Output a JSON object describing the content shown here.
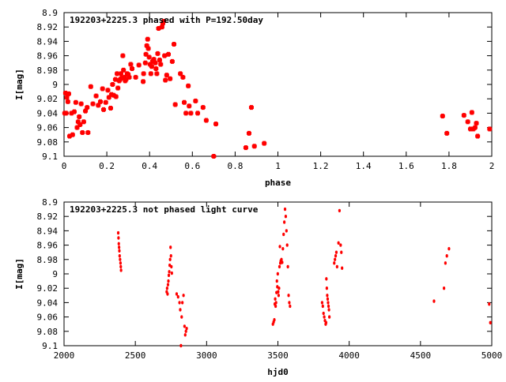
{
  "chart_data": [
    {
      "type": "scatter",
      "title": "192203+2225.3 phased with P=192.50day",
      "xlabel": "phase",
      "ylabel": "I[mag]",
      "xlim": [
        0,
        2
      ],
      "ylim": [
        9.1,
        8.9
      ],
      "y_inverted": true,
      "x_ticks": [
        "0",
        "0.2",
        "0.4",
        "0.6",
        "0.8",
        "1",
        "1.2",
        "1.4",
        "1.6",
        "1.8",
        "2"
      ],
      "y_ticks": [
        "8.9",
        "8.92",
        "8.94",
        "8.96",
        "8.98",
        "9",
        "9.02",
        "9.04",
        "9.06",
        "9.08",
        "9.1"
      ],
      "grid": false,
      "marker_color": "#ff0000",
      "series": [
        {
          "points": [
            [
              0.003,
              9.04
            ],
            [
              0.007,
              9.012
            ],
            [
              0.01,
              9.04
            ],
            [
              0.013,
              9.018
            ],
            [
              0.018,
              9.024
            ],
            [
              0.022,
              9.013
            ],
            [
              0.026,
              9.072
            ],
            [
              0.035,
              9.04
            ],
            [
              0.04,
              9.07
            ],
            [
              0.048,
              9.038
            ],
            [
              0.055,
              9.025
            ],
            [
              0.061,
              9.06
            ],
            [
              0.066,
              9.052
            ],
            [
              0.071,
              9.045
            ],
            [
              0.075,
              9.056
            ],
            [
              0.08,
              9.027
            ],
            [
              0.086,
              9.067
            ],
            [
              0.092,
              9.052
            ],
            [
              0.1,
              9.037
            ],
            [
              0.108,
              9.032
            ],
            [
              0.112,
              9.067
            ],
            [
              0.125,
              9.003
            ],
            [
              0.135,
              9.027
            ],
            [
              0.15,
              9.016
            ],
            [
              0.16,
              9.029
            ],
            [
              0.17,
              9.024
            ],
            [
              0.18,
              9.006
            ],
            [
              0.185,
              9.035
            ],
            [
              0.195,
              9.025
            ],
            [
              0.205,
              9.008
            ],
            [
              0.21,
              9.018
            ],
            [
              0.218,
              9.033
            ],
            [
              0.222,
              9.014
            ],
            [
              0.227,
              9.0
            ],
            [
              0.232,
              9.015
            ],
            [
              0.24,
              8.993
            ],
            [
              0.243,
              9.017
            ],
            [
              0.248,
              8.985
            ],
            [
              0.252,
              9.005
            ],
            [
              0.258,
              8.995
            ],
            [
              0.262,
              8.993
            ],
            [
              0.266,
              8.985
            ],
            [
              0.27,
              8.991
            ],
            [
              0.275,
              8.96
            ],
            [
              0.278,
              8.98
            ],
            [
              0.282,
              8.99
            ],
            [
              0.286,
              8.995
            ],
            [
              0.29,
              8.993
            ],
            [
              0.295,
              8.985
            ],
            [
              0.3,
              8.986
            ],
            [
              0.305,
              8.99
            ],
            [
              0.312,
              8.972
            ],
            [
              0.318,
              8.978
            ],
            [
              0.335,
              8.99
            ],
            [
              0.35,
              8.973
            ],
            [
              0.37,
              8.996
            ],
            [
              0.372,
              8.985
            ],
            [
              0.38,
              8.97
            ],
            [
              0.383,
              8.958
            ],
            [
              0.387,
              8.946
            ],
            [
              0.391,
              8.937
            ],
            [
              0.394,
              8.95
            ],
            [
              0.398,
              8.962
            ],
            [
              0.402,
              8.972
            ],
            [
              0.406,
              8.985
            ],
            [
              0.41,
              8.975
            ],
            [
              0.414,
              8.968
            ],
            [
              0.42,
              8.965
            ],
            [
              0.427,
              8.97
            ],
            [
              0.43,
              8.978
            ],
            [
              0.434,
              8.985
            ],
            [
              0.438,
              8.957
            ],
            [
              0.442,
              8.922
            ],
            [
              0.447,
              8.966
            ],
            [
              0.452,
              8.972
            ],
            [
              0.458,
              8.92
            ],
            [
              0.462,
              8.915
            ],
            [
              0.466,
              8.912
            ],
            [
              0.47,
              8.96
            ],
            [
              0.474,
              8.994
            ],
            [
              0.48,
              8.987
            ],
            [
              0.488,
              8.958
            ],
            [
              0.496,
              8.992
            ],
            [
              0.506,
              8.968
            ],
            [
              0.514,
              8.944
            ],
            [
              0.52,
              9.028
            ],
            [
              0.544,
              8.985
            ],
            [
              0.556,
              8.99
            ],
            [
              0.562,
              9.025
            ],
            [
              0.57,
              9.04
            ],
            [
              0.581,
              9.002
            ],
            [
              0.585,
              9.03
            ],
            [
              0.593,
              9.04
            ],
            [
              0.615,
              9.023
            ],
            [
              0.625,
              9.04
            ],
            [
              0.65,
              9.032
            ],
            [
              0.665,
              9.05
            ],
            [
              0.7,
              9.1
            ],
            [
              0.71,
              9.055
            ],
            [
              0.85,
              9.088
            ],
            [
              0.865,
              9.068
            ],
            [
              0.876,
              9.032
            ],
            [
              0.89,
              9.086
            ],
            [
              0.936,
              9.082
            ],
            [
              1.77,
              9.044
            ],
            [
              1.79,
              9.068
            ],
            [
              1.87,
              9.043
            ],
            [
              1.888,
              9.052
            ],
            [
              1.9,
              9.062
            ],
            [
              1.907,
              9.039
            ],
            [
              1.914,
              9.062
            ],
            [
              1.922,
              9.06
            ],
            [
              1.928,
              9.054
            ],
            [
              1.934,
              9.072
            ],
            [
              1.99,
              9.062
            ]
          ]
        }
      ]
    },
    {
      "type": "scatter",
      "title": "192203+2225.3 not phased light curve",
      "xlabel": "hjd0",
      "ylabel": "I[mag]",
      "xlim": [
        2000,
        5000
      ],
      "ylim": [
        9.1,
        8.9
      ],
      "y_inverted": true,
      "x_ticks": [
        "2000",
        "2500",
        "3000",
        "3500",
        "4000",
        "4500",
        "5000"
      ],
      "y_ticks": [
        "8.9",
        "8.92",
        "8.94",
        "8.96",
        "8.98",
        "9",
        "9.02",
        "9.04",
        "9.06",
        "9.08",
        "9.1"
      ],
      "grid": false,
      "marker_color": "#ff0000",
      "series": [
        {
          "points": [
            [
              2380,
              8.943
            ],
            [
              2382,
              8.95
            ],
            [
              2384,
              8.958
            ],
            [
              2386,
              8.963
            ],
            [
              2388,
              8.968
            ],
            [
              2390,
              8.975
            ],
            [
              2393,
              8.98
            ],
            [
              2396,
              8.985
            ],
            [
              2398,
              8.99
            ],
            [
              2400,
              8.995
            ],
            [
              2720,
              9.025
            ],
            [
              2723,
              9.02
            ],
            [
              2726,
              9.028
            ],
            [
              2729,
              9.015
            ],
            [
              2732,
              9.01
            ],
            [
              2735,
              9.002
            ],
            [
              2738,
              8.997
            ],
            [
              2741,
              8.988
            ],
            [
              2744,
              8.98
            ],
            [
              2747,
              8.963
            ],
            [
              2750,
              8.975
            ],
            [
              2753,
              8.99
            ],
            [
              2756,
              8.999
            ],
            [
              2790,
              9.028
            ],
            [
              2800,
              9.032
            ],
            [
              2810,
              9.04
            ],
            [
              2815,
              9.05
            ],
            [
              2820,
              9.1
            ],
            [
              2825,
              9.06
            ],
            [
              2830,
              9.04
            ],
            [
              2838,
              9.03
            ],
            [
              2845,
              9.073
            ],
            [
              2850,
              9.085
            ],
            [
              2855,
              9.08
            ],
            [
              2860,
              9.076
            ],
            [
              3465,
              9.07
            ],
            [
              3470,
              9.067
            ],
            [
              3475,
              9.064
            ],
            [
              3478,
              9.042
            ],
            [
              3481,
              9.035
            ],
            [
              3484,
              9.045
            ],
            [
              3487,
              9.04
            ],
            [
              3490,
              9.026
            ],
            [
              3493,
              9.01
            ],
            [
              3496,
              9.018
            ],
            [
              3499,
              9.0
            ],
            [
              3502,
              9.025
            ],
            [
              3505,
              9.03
            ],
            [
              3508,
              9.02
            ],
            [
              3511,
              8.99
            ],
            [
              3514,
              8.962
            ],
            [
              3517,
              8.985
            ],
            [
              3520,
              8.982
            ],
            [
              3525,
              8.98
            ],
            [
              3530,
              8.984
            ],
            [
              3535,
              8.965
            ],
            [
              3540,
              8.945
            ],
            [
              3545,
              8.928
            ],
            [
              3550,
              8.91
            ],
            [
              3555,
              8.92
            ],
            [
              3560,
              8.94
            ],
            [
              3565,
              8.96
            ],
            [
              3570,
              8.99
            ],
            [
              3575,
              9.03
            ],
            [
              3580,
              9.04
            ],
            [
              3585,
              9.045
            ],
            [
              3810,
              9.04
            ],
            [
              3815,
              9.045
            ],
            [
              3820,
              9.055
            ],
            [
              3825,
              9.06
            ],
            [
              3830,
              9.065
            ],
            [
              3835,
              9.07
            ],
            [
              3838,
              9.068
            ],
            [
              3840,
              9.007
            ],
            [
              3843,
              9.02
            ],
            [
              3846,
              9.03
            ],
            [
              3849,
              9.035
            ],
            [
              3852,
              9.04
            ],
            [
              3855,
              9.045
            ],
            [
              3858,
              9.05
            ],
            [
              3861,
              9.06
            ],
            [
              3895,
              8.985
            ],
            [
              3900,
              8.98
            ],
            [
              3905,
              8.975
            ],
            [
              3910,
              8.97
            ],
            [
              3915,
              8.99
            ],
            [
              3925,
              8.957
            ],
            [
              3932,
              8.912
            ],
            [
              3940,
              8.96
            ],
            [
              3945,
              8.97
            ],
            [
              3950,
              8.992
            ],
            [
              4595,
              9.038
            ],
            [
              4665,
              9.02
            ],
            [
              4675,
              8.985
            ],
            [
              4685,
              8.975
            ],
            [
              4700,
              8.965
            ],
            [
              4982,
              9.042
            ],
            [
              4990,
              9.068
            ]
          ]
        }
      ]
    }
  ]
}
